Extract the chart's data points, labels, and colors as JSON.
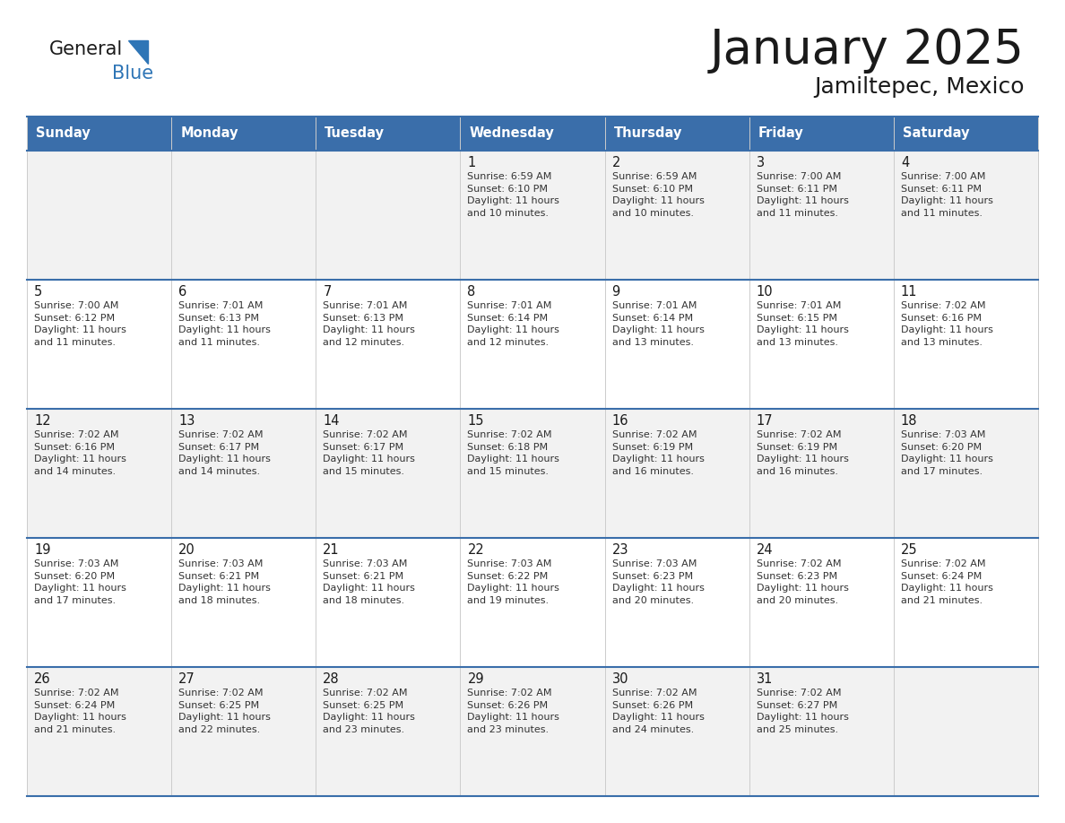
{
  "title": "January 2025",
  "subtitle": "Jamiltepec, Mexico",
  "days_of_week": [
    "Sunday",
    "Monday",
    "Tuesday",
    "Wednesday",
    "Thursday",
    "Friday",
    "Saturday"
  ],
  "header_bg": "#3A6EAA",
  "header_text_color": "#FFFFFF",
  "cell_bg_odd": "#F2F2F2",
  "cell_bg_even": "#FFFFFF",
  "cell_border_color": "#3A6EAA",
  "cell_grid_color": "#CCCCCC",
  "title_color": "#1a1a1a",
  "subtitle_color": "#1a1a1a",
  "general_color": "#1a1a1a",
  "blue_color": "#2E75B6",
  "cell_text_color": "#333333",
  "day_number_color": "#1a1a1a",
  "calendar_data": [
    [
      {
        "day": null,
        "text": ""
      },
      {
        "day": null,
        "text": ""
      },
      {
        "day": null,
        "text": ""
      },
      {
        "day": 1,
        "text": "Sunrise: 6:59 AM\nSunset: 6:10 PM\nDaylight: 11 hours\nand 10 minutes."
      },
      {
        "day": 2,
        "text": "Sunrise: 6:59 AM\nSunset: 6:10 PM\nDaylight: 11 hours\nand 10 minutes."
      },
      {
        "day": 3,
        "text": "Sunrise: 7:00 AM\nSunset: 6:11 PM\nDaylight: 11 hours\nand 11 minutes."
      },
      {
        "day": 4,
        "text": "Sunrise: 7:00 AM\nSunset: 6:11 PM\nDaylight: 11 hours\nand 11 minutes."
      }
    ],
    [
      {
        "day": 5,
        "text": "Sunrise: 7:00 AM\nSunset: 6:12 PM\nDaylight: 11 hours\nand 11 minutes."
      },
      {
        "day": 6,
        "text": "Sunrise: 7:01 AM\nSunset: 6:13 PM\nDaylight: 11 hours\nand 11 minutes."
      },
      {
        "day": 7,
        "text": "Sunrise: 7:01 AM\nSunset: 6:13 PM\nDaylight: 11 hours\nand 12 minutes."
      },
      {
        "day": 8,
        "text": "Sunrise: 7:01 AM\nSunset: 6:14 PM\nDaylight: 11 hours\nand 12 minutes."
      },
      {
        "day": 9,
        "text": "Sunrise: 7:01 AM\nSunset: 6:14 PM\nDaylight: 11 hours\nand 13 minutes."
      },
      {
        "day": 10,
        "text": "Sunrise: 7:01 AM\nSunset: 6:15 PM\nDaylight: 11 hours\nand 13 minutes."
      },
      {
        "day": 11,
        "text": "Sunrise: 7:02 AM\nSunset: 6:16 PM\nDaylight: 11 hours\nand 13 minutes."
      }
    ],
    [
      {
        "day": 12,
        "text": "Sunrise: 7:02 AM\nSunset: 6:16 PM\nDaylight: 11 hours\nand 14 minutes."
      },
      {
        "day": 13,
        "text": "Sunrise: 7:02 AM\nSunset: 6:17 PM\nDaylight: 11 hours\nand 14 minutes."
      },
      {
        "day": 14,
        "text": "Sunrise: 7:02 AM\nSunset: 6:17 PM\nDaylight: 11 hours\nand 15 minutes."
      },
      {
        "day": 15,
        "text": "Sunrise: 7:02 AM\nSunset: 6:18 PM\nDaylight: 11 hours\nand 15 minutes."
      },
      {
        "day": 16,
        "text": "Sunrise: 7:02 AM\nSunset: 6:19 PM\nDaylight: 11 hours\nand 16 minutes."
      },
      {
        "day": 17,
        "text": "Sunrise: 7:02 AM\nSunset: 6:19 PM\nDaylight: 11 hours\nand 16 minutes."
      },
      {
        "day": 18,
        "text": "Sunrise: 7:03 AM\nSunset: 6:20 PM\nDaylight: 11 hours\nand 17 minutes."
      }
    ],
    [
      {
        "day": 19,
        "text": "Sunrise: 7:03 AM\nSunset: 6:20 PM\nDaylight: 11 hours\nand 17 minutes."
      },
      {
        "day": 20,
        "text": "Sunrise: 7:03 AM\nSunset: 6:21 PM\nDaylight: 11 hours\nand 18 minutes."
      },
      {
        "day": 21,
        "text": "Sunrise: 7:03 AM\nSunset: 6:21 PM\nDaylight: 11 hours\nand 18 minutes."
      },
      {
        "day": 22,
        "text": "Sunrise: 7:03 AM\nSunset: 6:22 PM\nDaylight: 11 hours\nand 19 minutes."
      },
      {
        "day": 23,
        "text": "Sunrise: 7:03 AM\nSunset: 6:23 PM\nDaylight: 11 hours\nand 20 minutes."
      },
      {
        "day": 24,
        "text": "Sunrise: 7:02 AM\nSunset: 6:23 PM\nDaylight: 11 hours\nand 20 minutes."
      },
      {
        "day": 25,
        "text": "Sunrise: 7:02 AM\nSunset: 6:24 PM\nDaylight: 11 hours\nand 21 minutes."
      }
    ],
    [
      {
        "day": 26,
        "text": "Sunrise: 7:02 AM\nSunset: 6:24 PM\nDaylight: 11 hours\nand 21 minutes."
      },
      {
        "day": 27,
        "text": "Sunrise: 7:02 AM\nSunset: 6:25 PM\nDaylight: 11 hours\nand 22 minutes."
      },
      {
        "day": 28,
        "text": "Sunrise: 7:02 AM\nSunset: 6:25 PM\nDaylight: 11 hours\nand 23 minutes."
      },
      {
        "day": 29,
        "text": "Sunrise: 7:02 AM\nSunset: 6:26 PM\nDaylight: 11 hours\nand 23 minutes."
      },
      {
        "day": 30,
        "text": "Sunrise: 7:02 AM\nSunset: 6:26 PM\nDaylight: 11 hours\nand 24 minutes."
      },
      {
        "day": 31,
        "text": "Sunrise: 7:02 AM\nSunset: 6:27 PM\nDaylight: 11 hours\nand 25 minutes."
      },
      {
        "day": null,
        "text": ""
      }
    ]
  ],
  "figwidth": 11.88,
  "figheight": 9.18,
  "dpi": 100
}
